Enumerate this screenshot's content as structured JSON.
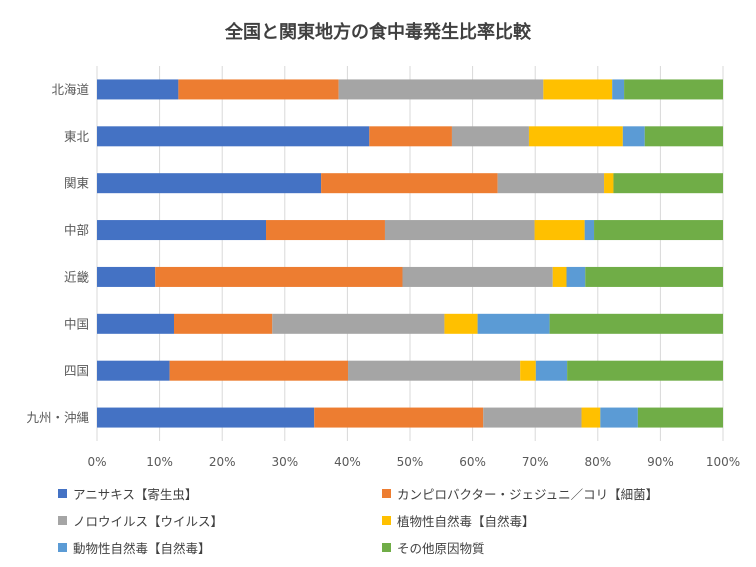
{
  "chart_data": {
    "type": "bar",
    "orientation": "horizontal",
    "stacked": true,
    "title": "全国と関東地方の食中毒発生比率比較",
    "categories": [
      "北海道",
      "東北",
      "関東",
      "中部",
      "近畿",
      "中国",
      "四国",
      "九州・沖縄"
    ],
    "xlim": [
      0,
      100
    ],
    "x_ticks": [
      "0%",
      "10%",
      "20%",
      "30%",
      "40%",
      "50%",
      "60%",
      "70%",
      "80%",
      "90%",
      "100%"
    ],
    "grid": true,
    "legend_position": "bottom",
    "series": [
      {
        "name": "アニサキス【寄生虫】",
        "color": "#4472C4",
        "values": [
          13.0,
          43.5,
          35.8,
          27.0,
          9.3,
          12.3,
          11.6,
          34.7
        ]
      },
      {
        "name": "カンピロバクター・ジェジュニ／コリ【細菌】",
        "color": "#ED7D31",
        "values": [
          25.6,
          13.2,
          28.2,
          19.0,
          39.5,
          15.7,
          28.5,
          27.0
        ]
      },
      {
        "name": "ノロウイルス【ウイルス】",
        "color": "#A5A5A5",
        "values": [
          32.7,
          12.3,
          17.0,
          23.9,
          24.0,
          27.5,
          27.5,
          15.7
        ]
      },
      {
        "name": "植物性自然毒【自然毒】",
        "color": "#FFC000",
        "values": [
          11.0,
          15.0,
          1.5,
          8.0,
          2.2,
          5.3,
          2.5,
          3.0
        ]
      },
      {
        "name": "動物性自然毒【自然毒】",
        "color": "#5B9BD5",
        "values": [
          1.9,
          3.5,
          0.0,
          1.5,
          3.0,
          11.5,
          5.0,
          6.0
        ]
      },
      {
        "name": "その他原因物質",
        "color": "#70AD47",
        "values": [
          15.8,
          12.5,
          17.5,
          20.6,
          22.0,
          27.7,
          24.9,
          13.6
        ]
      }
    ]
  }
}
